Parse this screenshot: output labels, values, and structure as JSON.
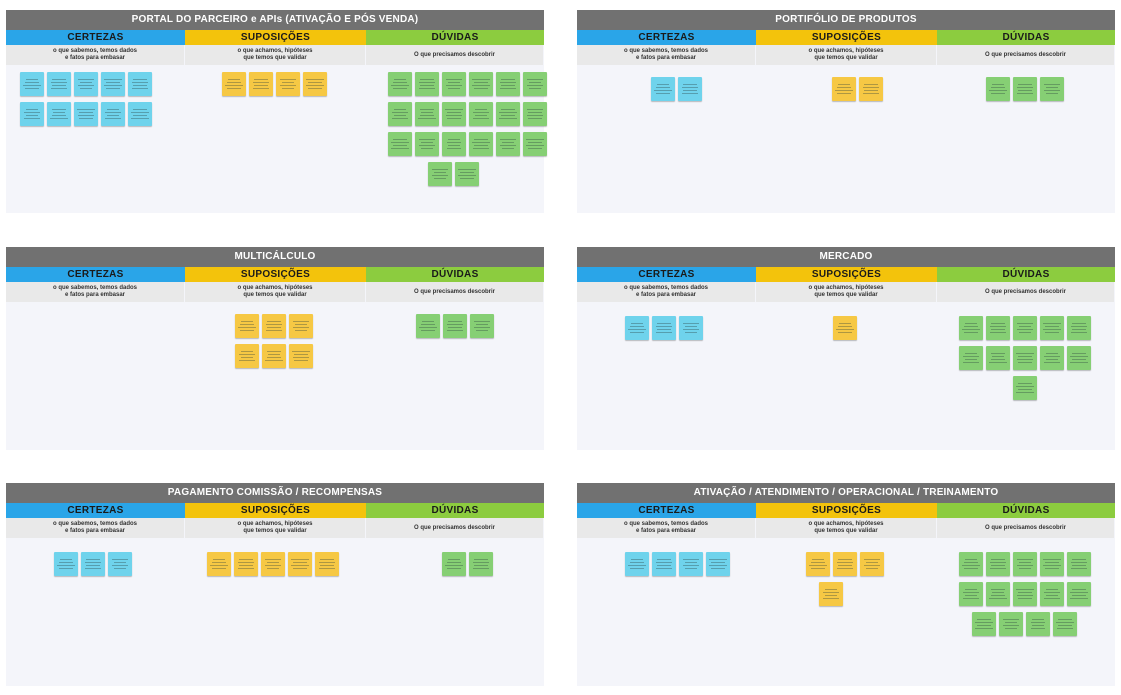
{
  "colors": {
    "title_bar": "#717171",
    "certezas": "#2aa5e8",
    "suposicoes": "#f3c30c",
    "duvidas": "#8ccc3f",
    "desc_bg": "#e9e9e9",
    "board_bg": "#f4f5fa",
    "note_blue": "#6fd3ec",
    "note_yellow": "#f6c844",
    "note_green": "#86cf74"
  },
  "columns": {
    "certezas": {
      "title": "CERTEZAS",
      "desc": "o que sabemos, temos dados\ne fatos para embasar"
    },
    "suposicoes": {
      "title": "SUPOSIÇÕES",
      "desc": "o que achamos, hipóteses\nque temos que validar"
    },
    "duvidas": {
      "title": "DÚVIDAS",
      "desc": "O que precisamos descobrir"
    }
  },
  "boards": [
    {
      "title": "PORTAL DO PARCEIRO e APIs (ATIVAÇÃO E PÓS VENDA)",
      "counts": {
        "certezas": 10,
        "suposicoes": 4,
        "duvidas": 20
      }
    },
    {
      "title": "PORTIFÓLIO DE PRODUTOS",
      "counts": {
        "certezas": 2,
        "suposicoes": 2,
        "duvidas": 3
      }
    },
    {
      "title": "MULTICÁLCULO",
      "counts": {
        "certezas": 0,
        "suposicoes": 6,
        "duvidas": 3
      }
    },
    {
      "title": "MERCADO",
      "counts": {
        "certezas": 3,
        "suposicoes": 1,
        "duvidas": 11
      }
    },
    {
      "title": "PAGAMENTO COMISSÃO / RECOMPENSAS",
      "counts": {
        "certezas": 3,
        "suposicoes": 5,
        "duvidas": 2
      }
    },
    {
      "title": "ATIVAÇÃO / ATENDIMENTO / OPERACIONAL / TREINAMENTO",
      "counts": {
        "certezas": 4,
        "suposicoes": 4,
        "duvidas": 14
      }
    }
  ]
}
